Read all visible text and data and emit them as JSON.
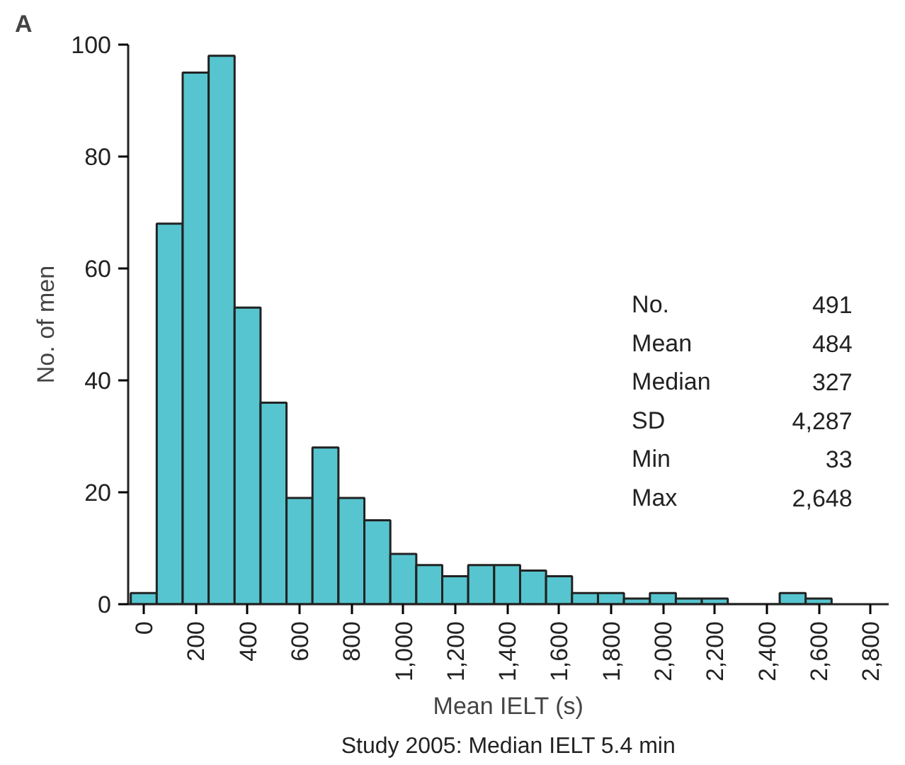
{
  "chart_data": {
    "type": "histogram",
    "title": "A",
    "xlabel": "Mean IELT (s)",
    "ylabel": "No. of men",
    "bins": [
      -50,
      50,
      150,
      250,
      350,
      450,
      550,
      650,
      750,
      850,
      950,
      1050,
      1150,
      1250,
      1350,
      1450,
      1550,
      1650,
      1750,
      1850,
      1950,
      2050,
      2150,
      2250,
      2350,
      2450,
      2550,
      2650
    ],
    "values": [
      2,
      68,
      95,
      98,
      53,
      36,
      19,
      28,
      19,
      15,
      9,
      7,
      5,
      7,
      7,
      6,
      5,
      2,
      2,
      1,
      2,
      1,
      1,
      0,
      0,
      2,
      1
    ],
    "color": "#56c5cf",
    "xlim": [
      -60,
      2870
    ],
    "ylim": [
      0,
      100
    ],
    "xticks": [
      0,
      200,
      400,
      600,
      800,
      {
        "value": 1000,
        "label": "1,000"
      },
      {
        "value": 1200,
        "label": "1,200"
      },
      {
        "value": 1400,
        "label": "1,400"
      },
      {
        "value": 1600,
        "label": "1,600"
      },
      {
        "value": 1800,
        "label": "1,800"
      },
      {
        "value": 2000,
        "label": "2,000"
      },
      {
        "value": 2200,
        "label": "2,200"
      },
      {
        "value": 2400,
        "label": "2,400"
      },
      {
        "value": 2600,
        "label": "2,600"
      },
      {
        "value": 2800,
        "label": "2,800"
      }
    ],
    "yticks": [
      0,
      20,
      40,
      60,
      80,
      100
    ],
    "grid": false,
    "annotations": [
      "No. 491",
      "Mean 484",
      "Median 327",
      "SD 4,287",
      "Min 33",
      "Max 2,648",
      "Study 2005: Median IELT 5.4 min"
    ]
  }
}
